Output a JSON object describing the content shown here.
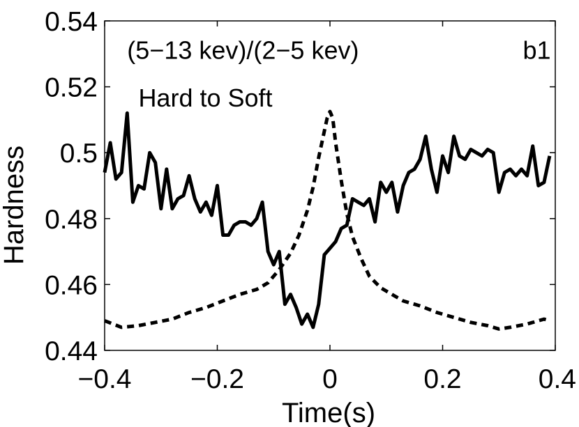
{
  "chart_data": {
    "type": "line",
    "title": "",
    "xlabel": "Time(s)",
    "ylabel": "Hardness",
    "xlim": [
      -0.4,
      0.4
    ],
    "ylim": [
      0.44,
      0.54
    ],
    "xticks": [
      -0.4,
      -0.2,
      0,
      0.2,
      0.4
    ],
    "xtick_labels": [
      "−0.4",
      "−0.2",
      "0",
      "0.2",
      "0.4"
    ],
    "yticks": [
      0.44,
      0.46,
      0.48,
      0.5,
      0.52,
      0.54
    ],
    "ytick_labels": [
      "0.44",
      "0.46",
      "0.48",
      "0.5",
      "0.52",
      "0.54"
    ],
    "grid": false,
    "annotations": [
      {
        "text": "(5−13 kev)/(2−5 kev)",
        "x": -0.36,
        "y": 0.531
      },
      {
        "text": "Hard to Soft",
        "x": -0.34,
        "y": 0.5165
      },
      {
        "text": "b1",
        "x": 0.392,
        "y": 0.531
      }
    ],
    "series": [
      {
        "style": "solid",
        "color": "#000000",
        "x": [
          -0.4,
          -0.39,
          -0.38,
          -0.37,
          -0.36,
          -0.35,
          -0.34,
          -0.33,
          -0.32,
          -0.31,
          -0.3,
          -0.29,
          -0.28,
          -0.27,
          -0.26,
          -0.25,
          -0.24,
          -0.23,
          -0.22,
          -0.21,
          -0.2,
          -0.19,
          -0.18,
          -0.17,
          -0.16,
          -0.15,
          -0.14,
          -0.13,
          -0.12,
          -0.11,
          -0.1,
          -0.09,
          -0.08,
          -0.07,
          -0.06,
          -0.05,
          -0.04,
          -0.03,
          -0.02,
          -0.01,
          0.0,
          0.01,
          0.02,
          0.03,
          0.04,
          0.05,
          0.06,
          0.07,
          0.08,
          0.09,
          0.1,
          0.11,
          0.12,
          0.13,
          0.14,
          0.15,
          0.16,
          0.17,
          0.18,
          0.19,
          0.2,
          0.21,
          0.22,
          0.23,
          0.24,
          0.25,
          0.26,
          0.27,
          0.28,
          0.29,
          0.3,
          0.31,
          0.32,
          0.33,
          0.34,
          0.35,
          0.36,
          0.37,
          0.38,
          0.39
        ],
        "y": [
          0.494,
          0.503,
          0.492,
          0.494,
          0.512,
          0.485,
          0.49,
          0.489,
          0.5,
          0.497,
          0.483,
          0.495,
          0.483,
          0.486,
          0.487,
          0.493,
          0.486,
          0.482,
          0.485,
          0.481,
          0.49,
          0.475,
          0.475,
          0.478,
          0.479,
          0.479,
          0.478,
          0.48,
          0.485,
          0.47,
          0.466,
          0.47,
          0.454,
          0.457,
          0.453,
          0.448,
          0.451,
          0.447,
          0.454,
          0.469,
          0.471,
          0.473,
          0.477,
          0.478,
          0.486,
          0.485,
          0.484,
          0.486,
          0.479,
          0.491,
          0.488,
          0.491,
          0.482,
          0.49,
          0.494,
          0.495,
          0.498,
          0.505,
          0.495,
          0.488,
          0.499,
          0.494,
          0.505,
          0.499,
          0.498,
          0.501,
          0.5,
          0.499,
          0.501,
          0.5,
          0.488,
          0.494,
          0.495,
          0.493,
          0.495,
          0.493,
          0.502,
          0.49,
          0.491,
          0.499
        ]
      },
      {
        "style": "dashed",
        "color": "#000000",
        "x": [
          -0.4,
          -0.37,
          -0.34,
          -0.31,
          -0.28,
          -0.25,
          -0.22,
          -0.19,
          -0.16,
          -0.13,
          -0.11,
          -0.09,
          -0.07,
          -0.055,
          -0.04,
          -0.03,
          -0.02,
          -0.01,
          -0.005,
          0.0,
          0.005,
          0.01,
          0.02,
          0.03,
          0.04,
          0.055,
          0.07,
          0.09,
          0.11,
          0.13,
          0.16,
          0.19,
          0.22,
          0.25,
          0.28,
          0.3,
          0.32,
          0.35,
          0.38,
          0.39
        ],
        "y": [
          0.449,
          0.447,
          0.4475,
          0.4485,
          0.4495,
          0.4515,
          0.453,
          0.455,
          0.457,
          0.4585,
          0.4605,
          0.4645,
          0.4695,
          0.475,
          0.4825,
          0.4895,
          0.4985,
          0.5065,
          0.5105,
          0.5125,
          0.5105,
          0.503,
          0.4915,
          0.4815,
          0.4745,
          0.468,
          0.4625,
          0.459,
          0.457,
          0.455,
          0.4535,
          0.4515,
          0.45,
          0.4485,
          0.4475,
          0.4465,
          0.447,
          0.448,
          0.4495,
          0.449
        ]
      }
    ]
  }
}
